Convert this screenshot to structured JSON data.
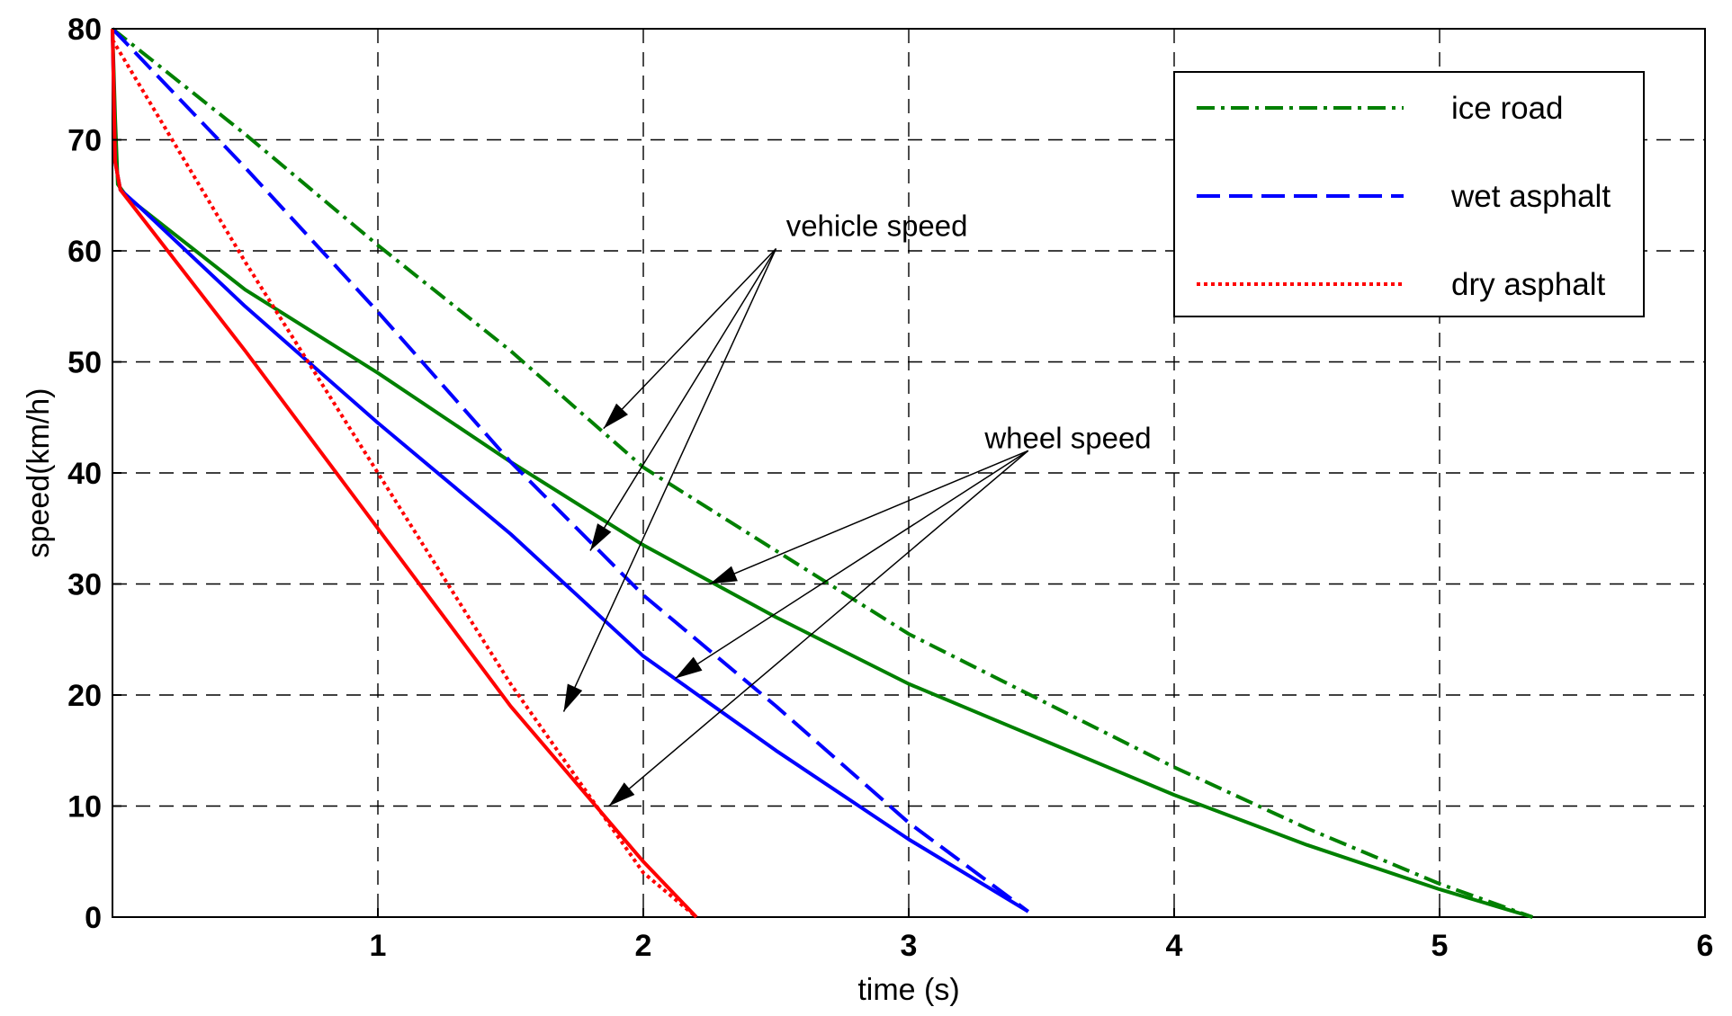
{
  "chart_data": {
    "type": "line",
    "title": "",
    "xlabel": "time (s)",
    "ylabel": "speed(km/h)",
    "xlim": [
      0,
      6
    ],
    "ylim": [
      0,
      80
    ],
    "xticks": [
      1,
      2,
      3,
      4,
      5,
      6
    ],
    "yticks": [
      0,
      10,
      20,
      30,
      40,
      50,
      60,
      70,
      80
    ],
    "grid": true,
    "legend_position": "top-right",
    "legend": [
      {
        "label": "ice road",
        "color": "#008000",
        "style": "dash-dot"
      },
      {
        "label": "wet asphalt",
        "color": "#0000ff",
        "style": "dashed"
      },
      {
        "label": "dry asphalt",
        "color": "#ff0000",
        "style": "dotted"
      }
    ],
    "series": [
      {
        "name": "ice road",
        "kind": "vehicle speed",
        "color": "#008000",
        "style": "dash-dot",
        "x": [
          0,
          0.5,
          1.0,
          1.5,
          2.0,
          2.5,
          3.0,
          3.5,
          4.0,
          4.5,
          5.0,
          5.35
        ],
        "y": [
          80,
          70.5,
          60.5,
          51,
          40.5,
          33,
          25.5,
          19.5,
          13.5,
          8,
          3,
          0
        ]
      },
      {
        "name": "ice road",
        "kind": "wheel speed",
        "color": "#008000",
        "style": "solid",
        "x": [
          0,
          0.01,
          0.02,
          0.05,
          0.1,
          0.5,
          1.0,
          1.5,
          2.0,
          2.5,
          3.0,
          3.5,
          4.0,
          4.5,
          5.0,
          5.35
        ],
        "y": [
          80,
          72,
          66,
          65,
          64,
          56.5,
          49,
          41,
          33.5,
          27,
          21,
          16,
          11,
          6.5,
          2.5,
          0
        ]
      },
      {
        "name": "wet asphalt",
        "kind": "vehicle speed",
        "color": "#0000ff",
        "style": "dashed",
        "x": [
          0,
          0.5,
          1.0,
          1.5,
          2.0,
          2.5,
          3.0,
          3.45
        ],
        "y": [
          80,
          67.5,
          54.5,
          41,
          29,
          19,
          8.5,
          0.5
        ]
      },
      {
        "name": "wet asphalt",
        "kind": "wheel speed",
        "color": "#0000ff",
        "style": "solid",
        "x": [
          0,
          0.01,
          0.03,
          0.1,
          0.5,
          1.0,
          1.5,
          2.0,
          2.5,
          3.0,
          3.45
        ],
        "y": [
          80,
          68,
          65.5,
          64,
          55,
          44.5,
          34.5,
          23.5,
          15,
          7,
          0.5
        ]
      },
      {
        "name": "dry asphalt",
        "kind": "vehicle speed",
        "color": "#ff0000",
        "style": "dotted",
        "x": [
          0,
          0.5,
          1.0,
          1.5,
          2.0,
          2.2
        ],
        "y": [
          79,
          59,
          40,
          21,
          4,
          0
        ]
      },
      {
        "name": "dry asphalt",
        "kind": "wheel speed",
        "color": "#ff0000",
        "style": "solid",
        "x": [
          0,
          0.01,
          0.03,
          0.5,
          1.0,
          1.5,
          2.0,
          2.2
        ],
        "y": [
          80,
          68,
          65.5,
          51,
          35,
          19,
          5,
          0
        ]
      }
    ],
    "annotations": [
      {
        "text": "vehicle speed",
        "text_x": 2.88,
        "text_y": 62.3,
        "arrows": [
          {
            "from": [
              2.5,
              60.2
            ],
            "to": [
              1.85,
              44
            ]
          },
          {
            "from": [
              2.5,
              60.2
            ],
            "to": [
              1.8,
              33
            ]
          },
          {
            "from": [
              2.5,
              60.2
            ],
            "to": [
              1.7,
              18.5
            ]
          }
        ]
      },
      {
        "text": "wheel speed",
        "text_x": 3.6,
        "text_y": 43.2,
        "arrows": [
          {
            "from": [
              3.45,
              42
            ],
            "to": [
              2.25,
              30
            ]
          },
          {
            "from": [
              3.45,
              42
            ],
            "to": [
              2.12,
              21.5
            ]
          },
          {
            "from": [
              3.45,
              42
            ],
            "to": [
              1.87,
              10
            ]
          }
        ]
      }
    ]
  }
}
